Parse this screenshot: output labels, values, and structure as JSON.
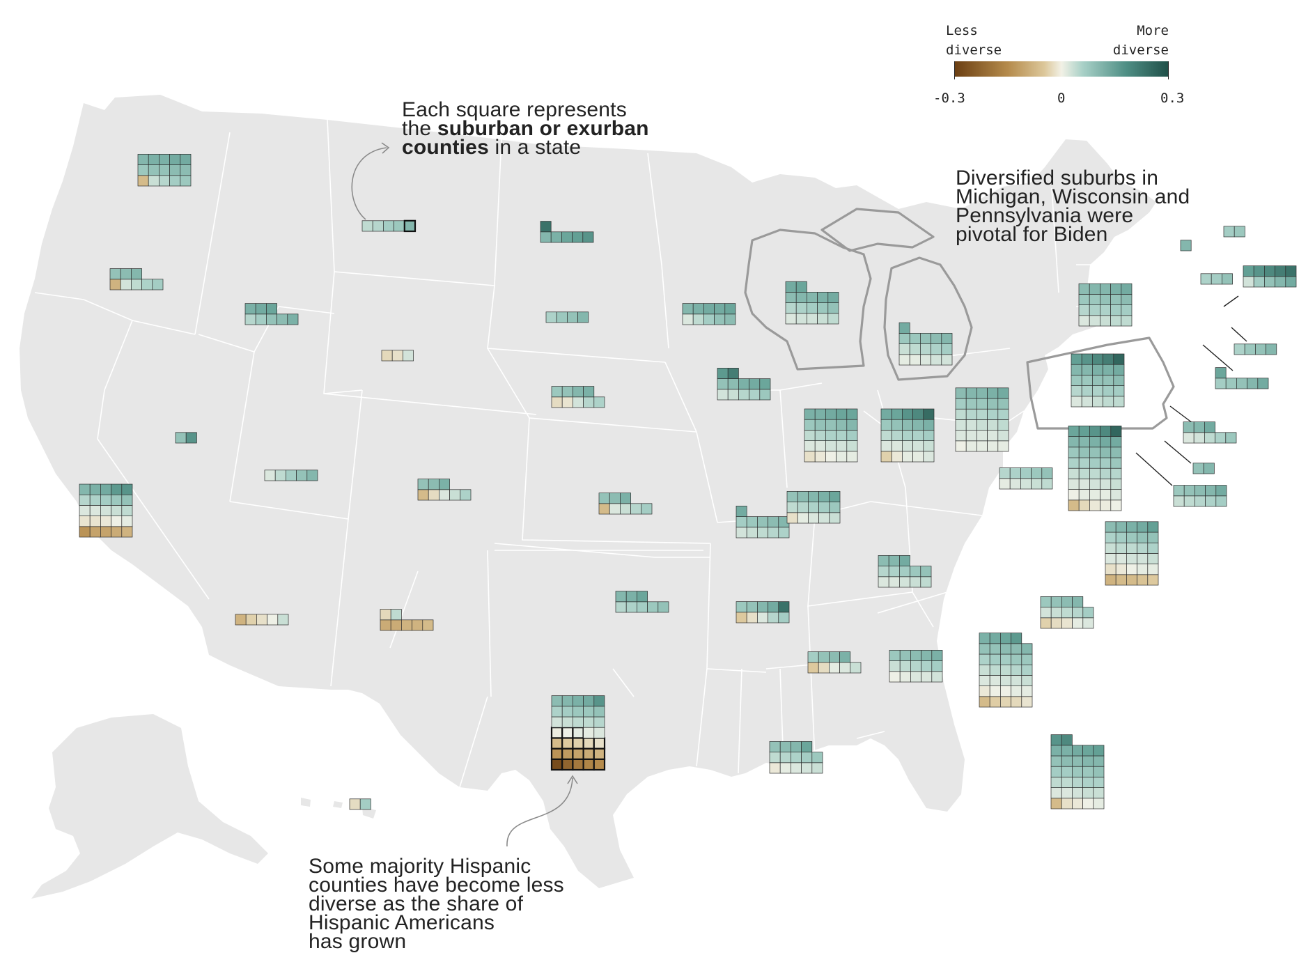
{
  "legend": {
    "low_label_line1": "Less",
    "low_label_line2": "diverse",
    "high_label_line1": "More",
    "high_label_line2": "diverse",
    "tick_min": "-0.3",
    "tick_mid": "0",
    "tick_max": "0.3",
    "scale_min": -0.3,
    "scale_max": 0.3,
    "color_low": "#6b3f12",
    "color_mid": "#eef0e6",
    "color_high": "#1f4f48"
  },
  "annotations": {
    "square_note": {
      "line1": "Each square represents",
      "line2_a": "the ",
      "line2_b": "suburban or exurban",
      "line3_a": "counties",
      "line3_b": " in a state"
    },
    "swing_note": {
      "line1": "Diversified suburbs in",
      "line2": "Michigan, Wisconsin and",
      "line3": "Pennsylvania were",
      "line4": "pivotal for Biden"
    },
    "hispanic_note": {
      "line1": "Some majority Hispanic",
      "line2": "counties have become less",
      "line3": "diverse as the share of",
      "line4": "Hispanic Americans",
      "line5": "has grown"
    }
  },
  "colors": {
    "land": "#e7e7e7",
    "state_border": "#ffffff",
    "highlight_border": "#9a9a9a",
    "cell_border": "#2c2c2c",
    "leader_line": "#222222"
  },
  "highlighted_states": [
    "WI",
    "MI",
    "PA"
  ],
  "state_tiles": [
    {
      "state": "WA",
      "cols": 5,
      "values": [
        0.14,
        0.14,
        0.13,
        0.12,
        0.13,
        0.11,
        0.1,
        0.1,
        0.09,
        0.11,
        0.09,
        0.08,
        0.06,
        0.04,
        -0.12
      ]
    },
    {
      "state": "OR",
      "cols": 5,
      "values": [
        0.12,
        0.11,
        0.1,
        0.08,
        0.07,
        0.05,
        0.03,
        -0.13
      ]
    },
    {
      "state": "ID",
      "cols": 5,
      "values": [
        0.15,
        0.14,
        0.13,
        0.13,
        0.11,
        0.1,
        0.08,
        0.06
      ]
    },
    {
      "state": "MT",
      "cols": 5,
      "values": [
        0.12,
        0.09,
        0.08,
        0.06,
        0.05
      ],
      "outlined": [
        0
      ]
    },
    {
      "state": "ND",
      "cols": 5,
      "values": [
        0.24,
        0.18,
        0.16,
        0.15,
        0.13,
        0.12
      ]
    },
    {
      "state": "SD",
      "cols": 4,
      "values": [
        0.12,
        0.1,
        0.09,
        0.07
      ]
    },
    {
      "state": "WY",
      "cols": 3,
      "values": [
        0.03,
        -0.04,
        -0.06
      ]
    },
    {
      "state": "NE",
      "cols": 5,
      "values": [
        0.13,
        0.12,
        0.1,
        0.09,
        0.07,
        0.06,
        0.03,
        -0.03,
        -0.05
      ]
    },
    {
      "state": "MN",
      "cols": 5,
      "values": [
        0.15,
        0.14,
        0.14,
        0.13,
        0.12,
        0.11,
        0.1,
        0.08,
        0.05,
        0.02
      ]
    },
    {
      "state": "IA",
      "cols": 5,
      "values": [
        0.22,
        0.17,
        0.15,
        0.14,
        0.13,
        0.11,
        0.1,
        0.09,
        0.07,
        0.06,
        0.04,
        0.03
      ]
    },
    {
      "state": "WI",
      "cols": 5,
      "values": [
        0.15,
        0.14,
        0.14,
        0.13,
        0.12,
        0.12,
        0.11,
        0.1,
        0.09,
        0.08,
        0.07,
        0.06,
        0.05,
        0.04,
        0.03,
        0.03,
        0.02
      ]
    },
    {
      "state": "MI",
      "cols": 5,
      "values": [
        0.14,
        0.12,
        0.11,
        0.1,
        0.09,
        0.09,
        0.08,
        0.07,
        0.06,
        0.05,
        0.04,
        0.03,
        0.03,
        0.02,
        0.01,
        0.01
      ]
    },
    {
      "state": "NV",
      "cols": 2,
      "values": [
        0.18,
        0.1
      ]
    },
    {
      "state": "UT",
      "cols": 5,
      "values": [
        0.12,
        0.1,
        0.08,
        0.05,
        0.02
      ]
    },
    {
      "state": "CO",
      "cols": 5,
      "values": [
        0.13,
        0.11,
        0.1,
        0.07,
        0.04,
        0.02,
        -0.05,
        -0.12
      ]
    },
    {
      "state": "CA",
      "cols": 5,
      "values": [
        0.18,
        0.17,
        0.14,
        0.13,
        0.12,
        0.1,
        0.09,
        0.08,
        0.07,
        0.06,
        0.05,
        0.04,
        0.03,
        0.02,
        0.01,
        0.02,
        0.0,
        -0.02,
        -0.03,
        -0.03,
        -0.13,
        -0.14,
        -0.15,
        -0.15,
        -0.17
      ]
    },
    {
      "state": "KS",
      "cols": 5,
      "values": [
        0.13,
        0.11,
        0.1,
        0.08,
        0.06,
        0.04,
        0.02,
        -0.12
      ]
    },
    {
      "state": "IL",
      "cols": 5,
      "values": [
        0.15,
        0.15,
        0.14,
        0.13,
        0.13,
        0.12,
        0.11,
        0.1,
        0.1,
        0.09,
        0.08,
        0.07,
        0.07,
        0.06,
        0.05,
        0.04,
        0.03,
        0.03,
        0.02,
        0.01,
        0.02,
        0.01,
        0.0,
        -0.02,
        -0.04
      ]
    },
    {
      "state": "IN",
      "cols": 5,
      "values": [
        0.25,
        0.2,
        0.18,
        0.15,
        0.14,
        0.13,
        0.12,
        0.11,
        0.1,
        0.09,
        0.08,
        0.07,
        0.07,
        0.06,
        0.05,
        0.04,
        0.03,
        0.02,
        0.02,
        0.01,
        0.03,
        0.02,
        0.01,
        -0.02,
        -0.08
      ]
    },
    {
      "state": "OH",
      "cols": 5,
      "values": [
        0.14,
        0.13,
        0.12,
        0.12,
        0.11,
        0.1,
        0.1,
        0.09,
        0.09,
        0.08,
        0.07,
        0.07,
        0.06,
        0.06,
        0.05,
        0.05,
        0.04,
        0.04,
        0.03,
        0.03,
        0.03,
        0.02,
        0.02,
        0.02,
        0.01,
        0.02,
        0.01,
        0.01,
        0.01,
        0.0
      ]
    },
    {
      "state": "PA",
      "cols": 5,
      "values": [
        0.26,
        0.22,
        0.2,
        0.18,
        0.16,
        0.14,
        0.13,
        0.13,
        0.12,
        0.12,
        0.11,
        0.1,
        0.1,
        0.09,
        0.09,
        0.08,
        0.08,
        0.07,
        0.07,
        0.06,
        0.05,
        0.05,
        0.04,
        0.03,
        0.02
      ]
    },
    {
      "state": "NY",
      "cols": 5,
      "values": [
        0.14,
        0.13,
        0.12,
        0.12,
        0.11,
        0.11,
        0.1,
        0.1,
        0.09,
        0.09,
        0.08,
        0.08,
        0.07,
        0.07,
        0.06,
        0.05,
        0.05,
        0.04,
        0.03,
        0.02
      ]
    },
    {
      "state": "VT",
      "cols": 1,
      "values": [
        0.12
      ]
    },
    {
      "state": "NH",
      "cols": 2,
      "values": [
        0.09,
        0.08
      ]
    },
    {
      "state": "MA",
      "cols": 3,
      "values": [
        0.1,
        0.08,
        0.07
      ]
    },
    {
      "state": "ME",
      "cols": 5,
      "values": [
        0.24,
        0.22,
        0.2,
        0.18,
        0.16,
        0.14,
        0.12,
        0.1,
        0.08,
        0.03
      ]
    },
    {
      "state": "RI",
      "cols": 4,
      "values": [
        0.12,
        0.1,
        0.09,
        0.07
      ]
    },
    {
      "state": "CT",
      "cols": 5,
      "values": [
        0.15,
        0.14,
        0.12,
        0.1,
        0.09,
        0.08
      ]
    },
    {
      "state": "NJ",
      "cols": 5,
      "values": [
        0.14,
        0.12,
        0.11,
        0.09,
        0.07,
        0.05,
        0.03,
        0.02
      ]
    },
    {
      "state": "DE",
      "cols": 2,
      "values": [
        0.12,
        0.1
      ]
    },
    {
      "state": "MD",
      "cols": 5,
      "values": [
        0.14,
        0.12,
        0.11,
        0.1,
        0.09,
        0.08,
        0.07,
        0.06,
        0.05,
        0.04
      ]
    },
    {
      "state": "WV",
      "cols": 5,
      "values": [
        0.1,
        0.09,
        0.08,
        0.07,
        0.06,
        0.05,
        0.04,
        0.03,
        0.02,
        0.01
      ]
    },
    {
      "state": "VA",
      "cols": 5,
      "values": [
        0.26,
        0.2,
        0.18,
        0.16,
        0.15,
        0.14,
        0.14,
        0.13,
        0.12,
        0.12,
        0.11,
        0.11,
        0.1,
        0.1,
        0.09,
        0.09,
        0.08,
        0.08,
        0.07,
        0.07,
        0.06,
        0.06,
        0.05,
        0.05,
        0.04,
        0.04,
        0.03,
        0.03,
        0.02,
        0.02,
        0.02,
        0.01,
        0.01,
        0.0,
        -0.01,
        0.01,
        0.0,
        -0.02,
        -0.06,
        -0.12
      ]
    },
    {
      "state": "KY",
      "cols": 5,
      "values": [
        0.14,
        0.12,
        0.11,
        0.1,
        0.09,
        0.08,
        0.07,
        0.06,
        0.05,
        0.04,
        0.03,
        0.02,
        0.02
      ]
    },
    {
      "state": "MO",
      "cols": 5,
      "values": [
        0.14,
        0.12,
        0.11,
        0.1,
        0.09,
        0.08,
        0.07,
        0.06,
        0.05,
        0.04,
        0.03
      ]
    },
    {
      "state": "TN",
      "cols": 5,
      "values": [
        0.15,
        0.13,
        0.12,
        0.11,
        0.1,
        0.09,
        0.08,
        0.07,
        0.06,
        0.05,
        0.04,
        0.03,
        0.02,
        0.01,
        -0.04
      ]
    },
    {
      "state": "NC",
      "cols": 5,
      "values": [
        0.16,
        0.14,
        0.13,
        0.12,
        0.11,
        0.1,
        0.1,
        0.09,
        0.08,
        0.07,
        0.07,
        0.06,
        0.05,
        0.05,
        0.04,
        0.04,
        0.03,
        0.03,
        0.02,
        0.02,
        0.01,
        0.01,
        0.0,
        -0.02,
        -0.04,
        -0.1,
        -0.11,
        -0.12,
        -0.12,
        -0.13
      ]
    },
    {
      "state": "SC",
      "cols": 5,
      "values": [
        0.12,
        0.11,
        0.1,
        0.09,
        0.08,
        0.06,
        0.05,
        0.04,
        0.03,
        0.02,
        0.01,
        -0.03,
        -0.05,
        -0.08
      ]
    },
    {
      "state": "OK",
      "cols": 5,
      "values": [
        0.15,
        0.13,
        0.12,
        0.1,
        0.09,
        0.08,
        0.07,
        0.06
      ]
    },
    {
      "state": "AR",
      "cols": 5,
      "values": [
        0.24,
        0.14,
        0.12,
        0.1,
        0.09,
        0.08,
        0.06,
        0.02,
        -0.04,
        -0.1
      ]
    },
    {
      "state": "AZ",
      "cols": 5,
      "values": [
        0.04,
        0.0,
        -0.04,
        -0.08,
        -0.13
      ]
    },
    {
      "state": "NM",
      "cols": 5,
      "values": [
        0.05,
        -0.06,
        -0.12,
        -0.13,
        -0.13,
        -0.14,
        -0.14
      ]
    },
    {
      "state": "TX",
      "cols": 5,
      "values": [
        0.18,
        0.14,
        0.13,
        0.12,
        0.11,
        0.1,
        0.09,
        0.09,
        0.08,
        0.07,
        0.06,
        0.05,
        0.05,
        0.04,
        0.03,
        0.02,
        0.01,
        0.01,
        0.0,
        -0.01,
        -0.04,
        -0.06,
        -0.08,
        -0.1,
        -0.12,
        -0.13,
        -0.14,
        -0.15,
        -0.16,
        -0.17,
        -0.18,
        -0.19,
        -0.21,
        -0.24,
        -0.28
      ],
      "outlined": [
        17,
        18,
        19,
        20,
        21,
        22,
        23,
        24,
        25,
        26,
        27,
        28,
        29,
        30,
        31,
        32,
        33,
        34
      ]
    },
    {
      "state": "LA",
      "cols": 5,
      "values": [
        0.15,
        0.12,
        0.11,
        0.1,
        0.09,
        0.08,
        0.07,
        0.06,
        0.05,
        0.04,
        0.03,
        0.02,
        0.01,
        -0.02
      ]
    },
    {
      "state": "MS",
      "cols": 5,
      "values": [
        0.13,
        0.11,
        0.1,
        0.08,
        0.04,
        0.02,
        0.01,
        -0.05,
        -0.1
      ]
    },
    {
      "state": "AL",
      "cols": 5,
      "values": [
        0.13,
        0.12,
        0.11,
        0.1,
        0.09,
        0.08,
        0.07,
        0.06,
        0.05,
        0.04,
        0.03,
        0.02,
        0.01,
        0.0,
        0.02
      ]
    },
    {
      "state": "GA",
      "cols": 5,
      "values": [
        0.17,
        0.15,
        0.14,
        0.13,
        0.12,
        0.11,
        0.11,
        0.1,
        0.1,
        0.09,
        0.09,
        0.08,
        0.08,
        0.07,
        0.07,
        0.06,
        0.05,
        0.05,
        0.04,
        0.04,
        0.03,
        0.03,
        0.02,
        0.02,
        0.01,
        0.01,
        0.0,
        0.0,
        -0.02,
        -0.03,
        -0.06,
        -0.07,
        -0.09,
        -0.12
      ]
    },
    {
      "state": "FL",
      "cols": 5,
      "values": [
        0.2,
        0.18,
        0.16,
        0.15,
        0.14,
        0.13,
        0.13,
        0.12,
        0.12,
        0.11,
        0.11,
        0.1,
        0.1,
        0.09,
        0.09,
        0.08,
        0.08,
        0.07,
        0.07,
        0.06,
        0.05,
        0.05,
        0.04,
        0.04,
        0.03,
        0.02,
        0.02,
        0.01,
        0.0,
        -0.02,
        -0.04,
        -0.12
      ]
    },
    {
      "state": "HI",
      "cols": 2,
      "values": [
        0.08,
        -0.05
      ]
    }
  ]
}
